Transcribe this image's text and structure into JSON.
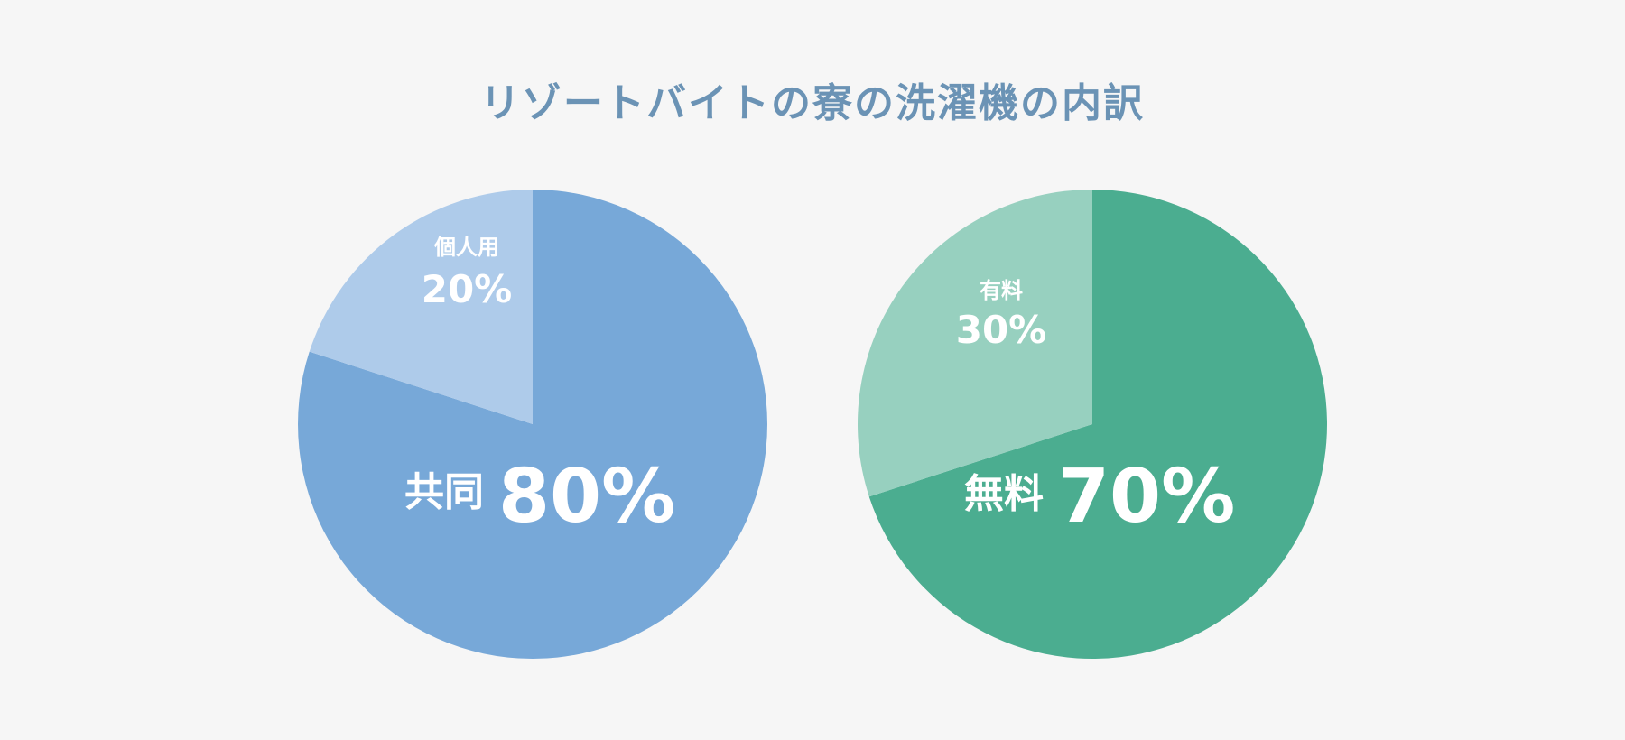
{
  "chart_data": [
    {
      "type": "pie",
      "title": "リゾートバイトの寮の洗濯機の内訳",
      "slices": [
        {
          "label": "共同",
          "value": 80,
          "value_text": "80%",
          "color": "#77a8d8",
          "emphasis": "major"
        },
        {
          "label": "個人用",
          "value": 20,
          "value_text": "20%",
          "color": "#aecbea",
          "emphasis": "minor"
        }
      ]
    },
    {
      "type": "pie",
      "slices": [
        {
          "label": "無料",
          "value": 70,
          "value_text": "70%",
          "color": "#4bad90",
          "emphasis": "major"
        },
        {
          "label": "有料",
          "value": 30,
          "value_text": "30%",
          "color": "#97d0bf",
          "emphasis": "minor"
        }
      ]
    }
  ],
  "title_color": "#6b93b5"
}
